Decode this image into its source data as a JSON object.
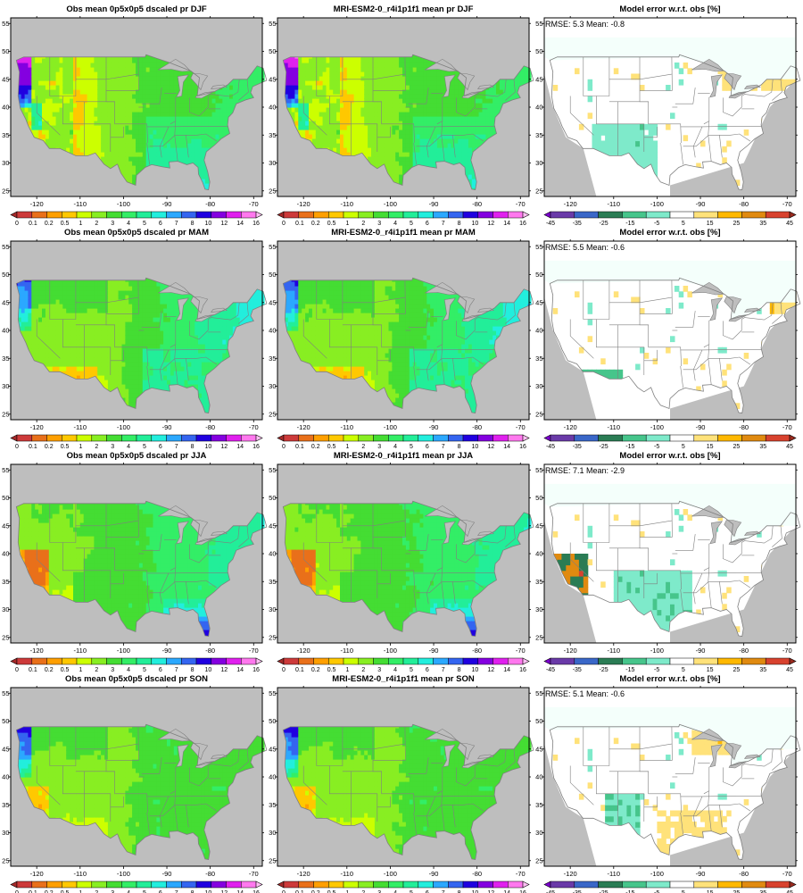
{
  "colors": {
    "ocean": "#bebebe",
    "lakes": "#bebebe",
    "frame": "#000000",
    "borders": "#7f7f7f",
    "error_borders": "#808080"
  },
  "precip_colorbar": {
    "labels": [
      "0",
      "0.1",
      "0.2",
      "0.5",
      "1",
      "2",
      "3",
      "4",
      "5",
      "6",
      "7",
      "8",
      "10",
      "12",
      "14",
      "16"
    ],
    "colors": [
      "#a52a2a",
      "#cd3a3a",
      "#e9701a",
      "#ff9f00",
      "#ffc800",
      "#ccff00",
      "#88ee22",
      "#44dd33",
      "#33ee66",
      "#22ee99",
      "#22eedd",
      "#2ba8ff",
      "#3465f0",
      "#2000e0",
      "#8400e0",
      "#e020ee",
      "#ff78ee",
      "#ffc0f5"
    ]
  },
  "error_colorbar": {
    "labels": [
      "-45",
      "-35",
      "-25",
      "-15",
      "-5",
      "5",
      "15",
      "25",
      "35",
      "45"
    ],
    "colors": [
      "#7b00cf",
      "#6a3aa8",
      "#3a67c8",
      "#2a7c54",
      "#46c58b",
      "#7eeaca",
      "#ffffff",
      "#ffe27a",
      "#ffb800",
      "#e08a10",
      "#d8422e",
      "#9b2a1e"
    ]
  },
  "axes": {
    "lon_ticks": [
      "-120",
      "-110",
      "-100",
      "-90",
      "-80",
      "-70"
    ],
    "lat_ticks": [
      "25",
      "30",
      "35",
      "40",
      "45",
      "50",
      "55"
    ]
  },
  "rows": [
    {
      "season": "DJF",
      "obs": {
        "title": "Obs mean 0p5x0p5 dscaled pr DJF"
      },
      "model": {
        "title": "MRI-ESM2-0_r4i1p1f1 mean pr DJF"
      },
      "error": {
        "title": "Model error w.r.t. obs [%]",
        "stats": "RMSE: 5.3   Mean: -0.8",
        "rmse": 5.3,
        "mean": -0.8
      }
    },
    {
      "season": "MAM",
      "obs": {
        "title": "Obs mean 0p5x0p5 dscaled pr MAM"
      },
      "model": {
        "title": "MRI-ESM2-0_r4i1p1f1 mean pr MAM"
      },
      "error": {
        "title": "Model error w.r.t. obs [%]",
        "stats": "RMSE: 5.5   Mean: -0.6",
        "rmse": 5.5,
        "mean": -0.6
      }
    },
    {
      "season": "JJA",
      "obs": {
        "title": "Obs mean 0p5x0p5 dscaled pr JJA"
      },
      "model": {
        "title": "MRI-ESM2-0_r4i1p1f1 mean pr JJA"
      },
      "error": {
        "title": "Model error w.r.t. obs [%]",
        "stats": "RMSE: 7.1   Mean: -2.9",
        "rmse": 7.1,
        "mean": -2.9
      }
    },
    {
      "season": "SON",
      "obs": {
        "title": "Obs mean 0p5x0p5 dscaled pr SON"
      },
      "model": {
        "title": "MRI-ESM2-0_r4i1p1f1 mean pr SON"
      },
      "error": {
        "title": "Model error w.r.t. obs [%]",
        "stats": "RMSE: 5.1   Mean: -0.6",
        "rmse": 5.1,
        "mean": -0.6
      }
    }
  ]
}
